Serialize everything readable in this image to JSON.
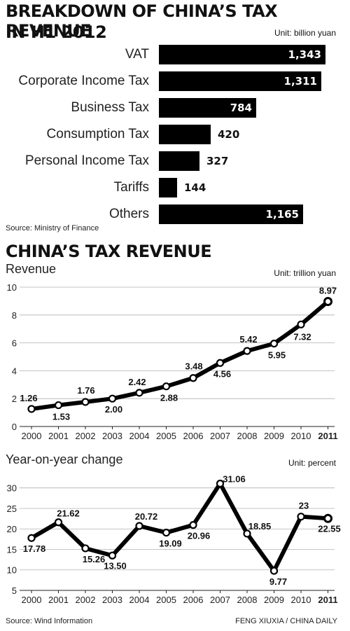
{
  "section1": {
    "title_line1": "BREAKDOWN OF CHINA’S TAX REVENUE",
    "title_line2": "IN H1 2012",
    "unit": "Unit: billion yuan",
    "source": "Source: Ministry of Finance"
  },
  "section2": {
    "title": "CHINA’S TAX REVENUE",
    "revenue_label": "Revenue",
    "revenue_unit": "Unit: trillion yuan",
    "yoy_label": "Year-on-year change",
    "yoy_unit": "Unit: percent",
    "source": "Source: Wind Information",
    "credit": "FENG XIUXIA / CHINA DAILY"
  },
  "colors": {
    "bar": "#000000",
    "line": "#000000",
    "marker_fill": "#ffffff",
    "grid": "#b0b0b0"
  },
  "chart_data": [
    {
      "type": "bar",
      "orientation": "horizontal",
      "categories": [
        "VAT",
        "Corporate Income Tax",
        "Business Tax",
        "Consumption Tax",
        "Personal Income Tax",
        "Tariffs",
        "Others"
      ],
      "values": [
        1343,
        1311,
        784,
        420,
        327,
        144,
        1165
      ],
      "value_labels": [
        "1,343",
        "1,311",
        "784",
        "420",
        "327",
        "144",
        "1,165"
      ],
      "xlim": [
        0,
        1400
      ]
    },
    {
      "type": "line",
      "x": [
        "2000",
        "2001",
        "2002",
        "2003",
        "2004",
        "2005",
        "2006",
        "2007",
        "2008",
        "2009",
        "2010",
        "2011"
      ],
      "values": [
        1.26,
        1.53,
        1.76,
        2.0,
        2.42,
        2.88,
        3.48,
        4.56,
        5.42,
        5.95,
        7.32,
        8.97
      ],
      "value_labels": [
        "1.26",
        "1.53",
        "1.76",
        "2.00",
        "2.42",
        "2.88",
        "3.48",
        "4.56",
        "5.42",
        "5.95",
        "7.32",
        "8.97"
      ],
      "ylim": [
        0,
        10
      ],
      "yticks": [
        "0",
        "2",
        "4",
        "6",
        "8",
        "10"
      ],
      "grid": true
    },
    {
      "type": "line",
      "x": [
        "2000",
        "2001",
        "2002",
        "2003",
        "2004",
        "2005",
        "2006",
        "2007",
        "2008",
        "2009",
        "2010",
        "2011"
      ],
      "values": [
        17.78,
        21.62,
        15.26,
        13.5,
        20.72,
        19.09,
        20.96,
        31.06,
        18.85,
        9.77,
        23,
        22.55
      ],
      "value_labels": [
        "17.78",
        "21.62",
        "15.26",
        "13.50",
        "20.72",
        "19.09",
        "20.96",
        "31.06",
        "18.85",
        "9.77",
        "23",
        "22.55"
      ],
      "ylim": [
        5,
        32
      ],
      "yticks": [
        "5",
        "10",
        "15",
        "20",
        "25",
        "30"
      ],
      "grid": true
    }
  ]
}
